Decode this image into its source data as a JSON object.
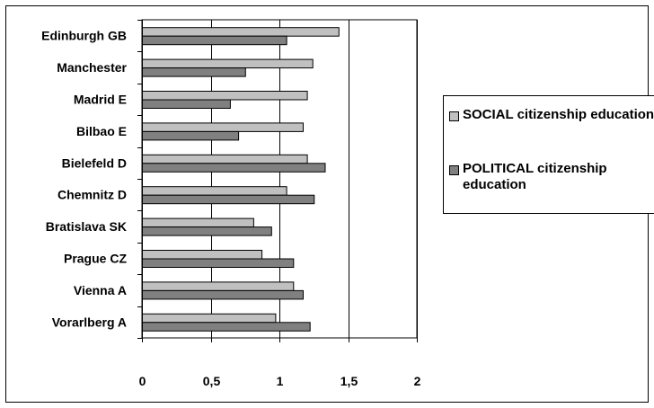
{
  "chart_data": {
    "type": "bar",
    "orientation": "horizontal",
    "categories": [
      "Edinburgh GB",
      "Manchester",
      "Madrid E",
      "Bilbao E",
      "Bielefeld D",
      "Chemnitz D",
      "Bratislava SK",
      "Prague CZ",
      "Vienna A",
      "Vorarlberg A"
    ],
    "series": [
      {
        "name": "SOCIAL citizenship education",
        "color": "#c0c0c0",
        "values": [
          1.43,
          1.24,
          1.2,
          1.17,
          1.2,
          1.05,
          0.81,
          0.87,
          1.1,
          0.97
        ]
      },
      {
        "name": "POLITICAL citizenship education",
        "color": "#808080",
        "values": [
          1.05,
          0.75,
          0.64,
          0.7,
          1.33,
          1.25,
          0.94,
          1.1,
          1.17,
          1.22
        ]
      }
    ],
    "xlim": [
      0,
      2
    ],
    "xticks": [
      "0",
      "0,5",
      "1",
      "1,5",
      "2"
    ],
    "grid": "vertical major gridlines",
    "legend": "right",
    "title": "",
    "xlabel": "",
    "ylabel": ""
  }
}
